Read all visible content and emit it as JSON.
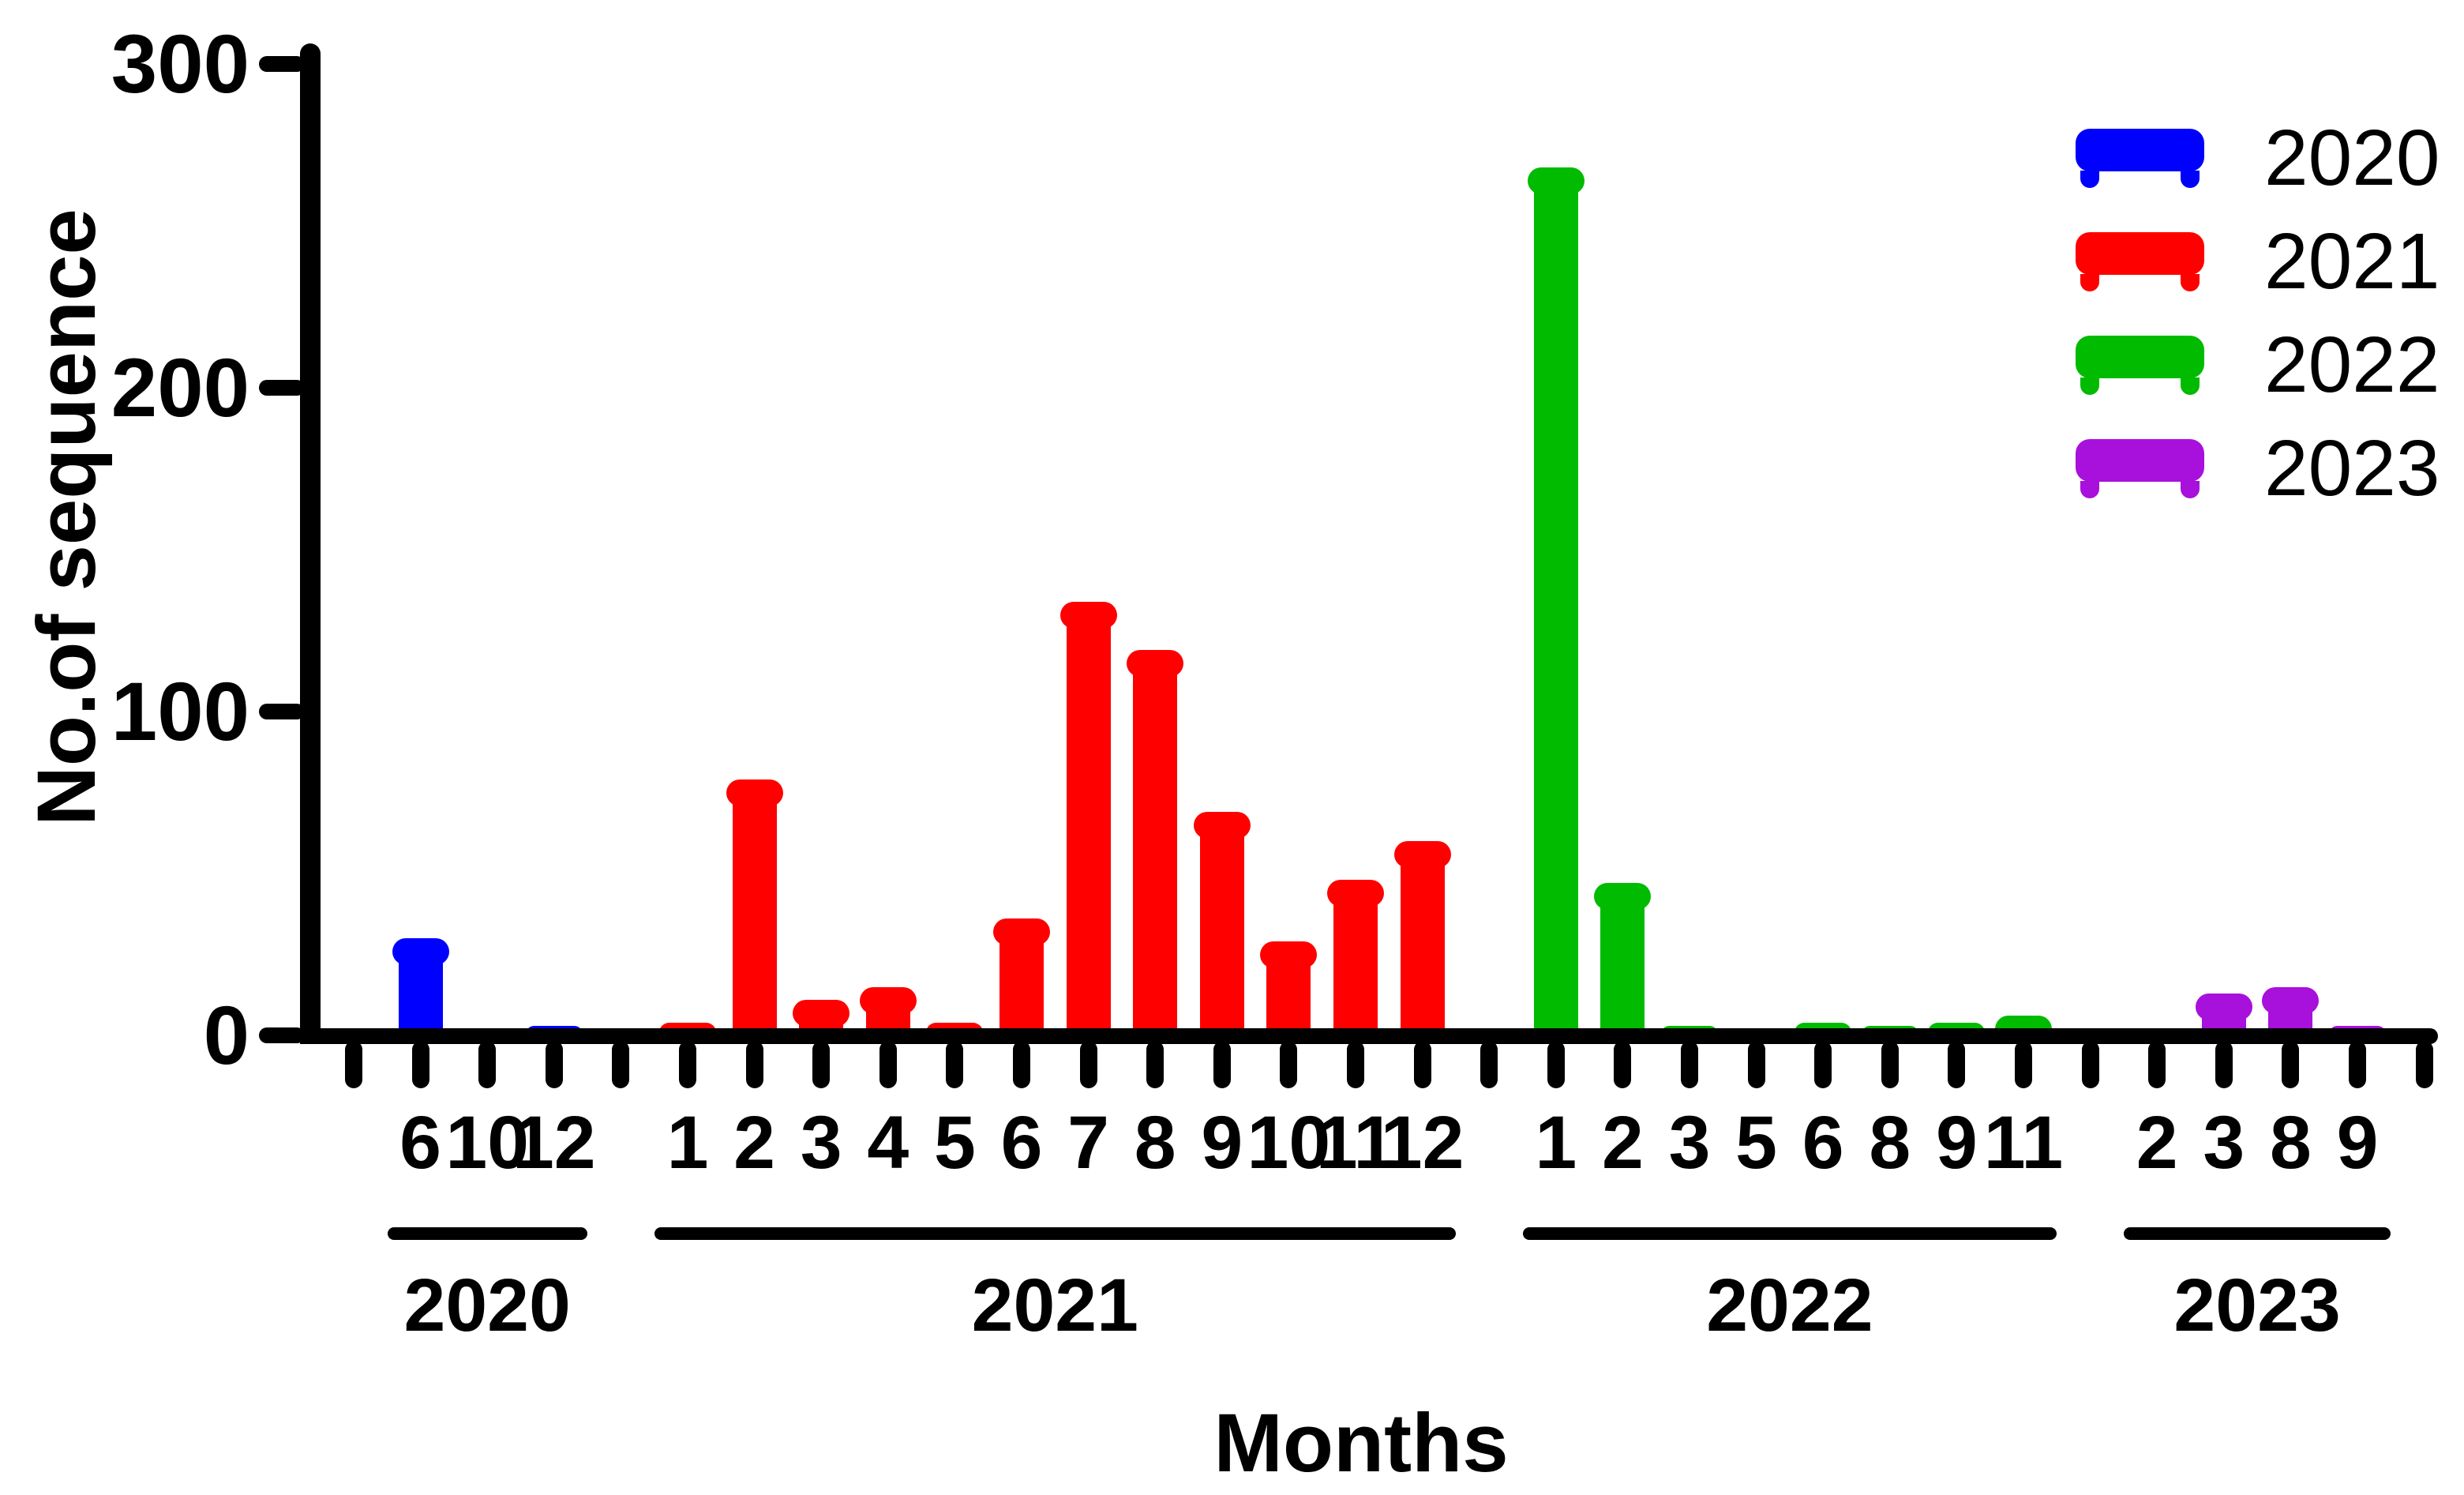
{
  "chart_data": {
    "type": "bar",
    "title": "",
    "ylabel": "No.of sequence",
    "xlabel": "Months",
    "yticks": [
      0,
      100,
      200,
      300
    ],
    "ylim": [
      0,
      300
    ],
    "grid": false,
    "legend_position": "top-right",
    "legend": [
      {
        "label": "2020",
        "color": "#0000FF"
      },
      {
        "label": "2021",
        "color": "#FF0000"
      },
      {
        "label": "2022",
        "color": "#00BB00"
      },
      {
        "label": "2023",
        "color": "#A810DC"
      }
    ],
    "series": [
      {
        "name": "2020",
        "color": "#0000FF",
        "categories": [
          "6",
          "10",
          "12"
        ],
        "values": [
          30,
          1,
          3
        ]
      },
      {
        "name": "2021",
        "color": "#FF0000",
        "categories": [
          "1",
          "2",
          "3",
          "4",
          "5",
          "6",
          "7",
          "8",
          "9",
          "10",
          "11",
          "12"
        ],
        "values": [
          4,
          79,
          11,
          15,
          4,
          36,
          134,
          119,
          69,
          29,
          48,
          60
        ]
      },
      {
        "name": "2022",
        "color": "#00BB00",
        "categories": [
          "1",
          "2",
          "3",
          "5",
          "6",
          "8",
          "9",
          "11"
        ],
        "values": [
          268,
          47,
          3,
          1,
          4,
          3,
          4,
          6
        ]
      },
      {
        "name": "2023",
        "color": "#A810DC",
        "categories": [
          "2",
          "3",
          "8",
          "9"
        ],
        "values": [
          1,
          13,
          15,
          3
        ]
      }
    ]
  }
}
